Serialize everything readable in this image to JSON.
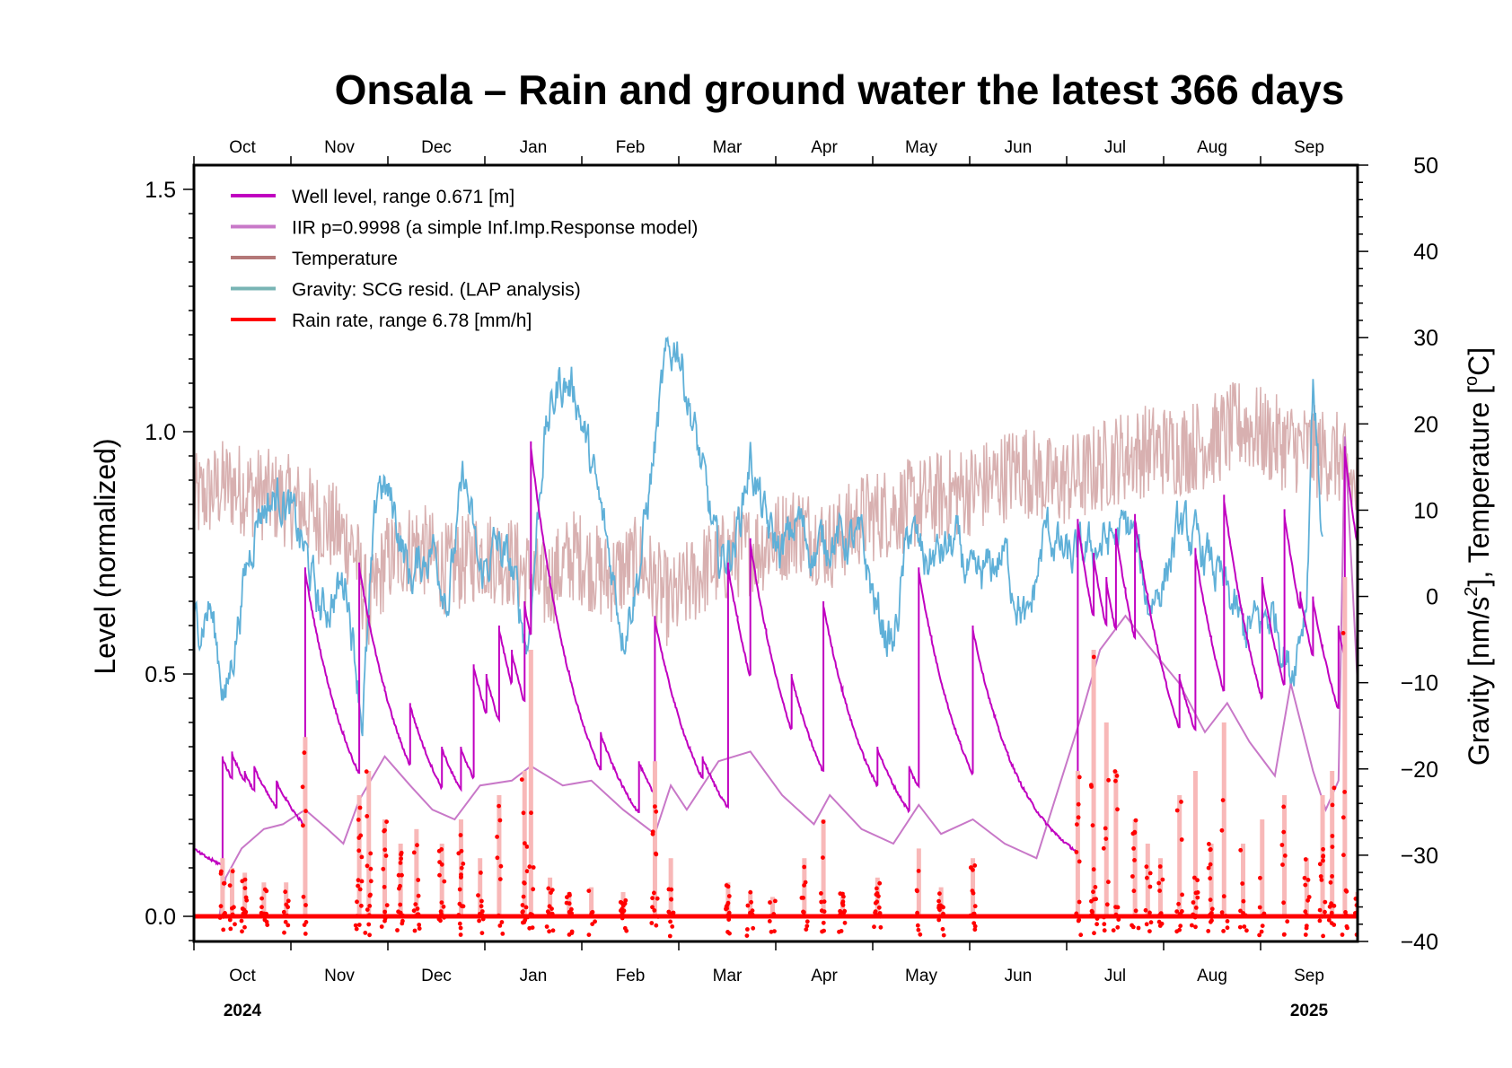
{
  "chart_data": {
    "type": "line",
    "title": "Onsala – Rain and ground water the latest 366 days",
    "ylabel_left": "Level (normalized)",
    "ylabel_right_prefix": "Gravity [nm/s",
    "ylabel_right_sup": "2",
    "ylabel_right_suffix": "], Temperature [",
    "ylabel_right_deg": "o",
    "ylabel_right_end": "C]",
    "ylim_left": [
      -0.05,
      1.55
    ],
    "ylim_right": [
      -40,
      50
    ],
    "yticks_left": [
      "0.0",
      "0.5",
      "1.0",
      "1.5"
    ],
    "yticks_left_values": [
      0,
      0.5,
      1.0,
      1.5
    ],
    "yticks_right": [
      "50",
      "40",
      "30",
      "20",
      "10",
      "0",
      "−10",
      "−20",
      "−30",
      "−40"
    ],
    "yticks_right_values": [
      50,
      40,
      30,
      20,
      10,
      0,
      -10,
      -20,
      -30,
      -40
    ],
    "x_days": 366,
    "months": [
      "Oct",
      "Nov",
      "Dec",
      "Jan",
      "Feb",
      "Mar",
      "Apr",
      "May",
      "Jun",
      "Jul",
      "Aug",
      "Sep"
    ],
    "years": [
      {
        "label": "2024",
        "month_index": 0
      },
      {
        "label": "2025",
        "month_index": 11
      }
    ],
    "grid": false,
    "legend_position": "top-left",
    "colors": {
      "well": "#c000c0",
      "iir": "#c878c8",
      "temperature": "#b47878",
      "temperature_trace": "#d8b0b0",
      "gravity": "#5fb0d8",
      "gravity_legend": "#78b4b4",
      "rain": "#ff0000",
      "rain_bar": "#f8b8b8"
    },
    "series": [
      {
        "name": "Well level, range 0.671 [m]",
        "key": "well",
        "axis": "left",
        "note": "recharge events (day, peak level) followed by decay",
        "events": [
          [
            0,
            0.14
          ],
          [
            9,
            0.33
          ],
          [
            12,
            0.34
          ],
          [
            16,
            0.3
          ],
          [
            19,
            0.31
          ],
          [
            22,
            0.27
          ],
          [
            26,
            0.28
          ],
          [
            29,
            0.22
          ],
          [
            35,
            0.72
          ],
          [
            47,
            0.3
          ],
          [
            52,
            0.73
          ],
          [
            55,
            0.55
          ],
          [
            60,
            0.4
          ],
          [
            68,
            0.44
          ],
          [
            78,
            0.35
          ],
          [
            82,
            0.27
          ],
          [
            84,
            0.35
          ],
          [
            88,
            0.52
          ],
          [
            92,
            0.5
          ],
          [
            96,
            0.6
          ],
          [
            100,
            0.55
          ],
          [
            104,
            0.65
          ],
          [
            106,
            0.98
          ],
          [
            112,
            0.63
          ],
          [
            118,
            0.42
          ],
          [
            128,
            0.38
          ],
          [
            140,
            0.32
          ],
          [
            145,
            0.62
          ],
          [
            156,
            0.3
          ],
          [
            160,
            0.33
          ],
          [
            168,
            0.73
          ],
          [
            171,
            0.38
          ],
          [
            175,
            0.78
          ],
          [
            180,
            0.5
          ],
          [
            188,
            0.5
          ],
          [
            198,
            0.65
          ],
          [
            204,
            0.36
          ],
          [
            215,
            0.35
          ],
          [
            225,
            0.31
          ],
          [
            228,
            0.72
          ],
          [
            232,
            0.3
          ],
          [
            241,
            0.24
          ],
          [
            245,
            0.6
          ],
          [
            252,
            0.32
          ],
          [
            256,
            0.25
          ],
          [
            262,
            0.23
          ],
          [
            278,
            0.82
          ],
          [
            283,
            0.75
          ],
          [
            287,
            0.7
          ],
          [
            290,
            0.8
          ],
          [
            293,
            0.66
          ],
          [
            296,
            0.83
          ],
          [
            300,
            0.62
          ],
          [
            310,
            0.5
          ],
          [
            315,
            0.76
          ],
          [
            320,
            0.5
          ],
          [
            324,
            0.87
          ],
          [
            330,
            0.6
          ],
          [
            336,
            0.7
          ],
          [
            343,
            0.84
          ],
          [
            348,
            0.67
          ],
          [
            352,
            0.66
          ],
          [
            355,
            0.43
          ],
          [
            360,
            0.6
          ],
          [
            362,
            0.97
          ],
          [
            366,
            0.03
          ]
        ]
      },
      {
        "name": "IIR p=0.9998 (a simple Inf.Imp.Response model)",
        "key": "iir",
        "axis": "left",
        "points": [
          [
            0,
            0.0
          ],
          [
            8,
            0.0
          ],
          [
            10,
            0.08
          ],
          [
            15,
            0.14
          ],
          [
            22,
            0.18
          ],
          [
            28,
            0.19
          ],
          [
            35,
            0.22
          ],
          [
            42,
            0.18
          ],
          [
            47,
            0.15
          ],
          [
            52,
            0.24
          ],
          [
            60,
            0.33
          ],
          [
            68,
            0.27
          ],
          [
            75,
            0.22
          ],
          [
            82,
            0.2
          ],
          [
            90,
            0.27
          ],
          [
            100,
            0.28
          ],
          [
            106,
            0.31
          ],
          [
            116,
            0.27
          ],
          [
            125,
            0.28
          ],
          [
            135,
            0.22
          ],
          [
            145,
            0.17
          ],
          [
            150,
            0.27
          ],
          [
            155,
            0.22
          ],
          [
            165,
            0.32
          ],
          [
            175,
            0.34
          ],
          [
            185,
            0.25
          ],
          [
            195,
            0.19
          ],
          [
            200,
            0.25
          ],
          [
            210,
            0.18
          ],
          [
            220,
            0.15
          ],
          [
            228,
            0.23
          ],
          [
            235,
            0.17
          ],
          [
            245,
            0.2
          ],
          [
            255,
            0.15
          ],
          [
            265,
            0.12
          ],
          [
            278,
            0.39
          ],
          [
            285,
            0.55
          ],
          [
            293,
            0.62
          ],
          [
            300,
            0.56
          ],
          [
            310,
            0.48
          ],
          [
            318,
            0.38
          ],
          [
            325,
            0.44
          ],
          [
            332,
            0.36
          ],
          [
            340,
            0.29
          ],
          [
            345,
            0.48
          ],
          [
            352,
            0.3
          ],
          [
            356,
            0.22
          ],
          [
            360,
            0.28
          ],
          [
            362,
            0.99
          ],
          [
            366,
            0.48
          ]
        ]
      },
      {
        "name": "Temperature",
        "key": "temperature",
        "axis": "right",
        "points": [
          [
            0,
            11
          ],
          [
            10,
            13
          ],
          [
            20,
            12
          ],
          [
            30,
            11
          ],
          [
            40,
            9
          ],
          [
            50,
            6
          ],
          [
            55,
            -2
          ],
          [
            60,
            4
          ],
          [
            70,
            6
          ],
          [
            80,
            3
          ],
          [
            90,
            5
          ],
          [
            100,
            4
          ],
          [
            110,
            1
          ],
          [
            120,
            5
          ],
          [
            130,
            2
          ],
          [
            140,
            4
          ],
          [
            150,
            -1
          ],
          [
            160,
            3
          ],
          [
            170,
            5
          ],
          [
            180,
            6
          ],
          [
            190,
            8
          ],
          [
            200,
            6
          ],
          [
            210,
            9
          ],
          [
            220,
            10
          ],
          [
            230,
            11
          ],
          [
            240,
            12
          ],
          [
            250,
            13
          ],
          [
            260,
            15
          ],
          [
            270,
            13
          ],
          [
            280,
            14
          ],
          [
            290,
            16
          ],
          [
            300,
            17
          ],
          [
            310,
            17
          ],
          [
            320,
            18
          ],
          [
            330,
            20
          ],
          [
            340,
            18
          ],
          [
            350,
            17
          ],
          [
            360,
            16
          ],
          [
            366,
            12
          ]
        ]
      },
      {
        "name": "Gravity: SCG resid. (LAP analysis)",
        "key": "gravity",
        "axis": "right",
        "points": [
          [
            0,
            -4
          ],
          [
            5,
            -1
          ],
          [
            10,
            -12
          ],
          [
            15,
            0
          ],
          [
            20,
            10
          ],
          [
            28,
            12
          ],
          [
            35,
            5
          ],
          [
            40,
            -2
          ],
          [
            48,
            2
          ],
          [
            53,
            -14
          ],
          [
            58,
            14
          ],
          [
            63,
            10
          ],
          [
            68,
            2
          ],
          [
            75,
            6
          ],
          [
            80,
            0
          ],
          [
            85,
            14
          ],
          [
            90,
            2
          ],
          [
            95,
            6
          ],
          [
            100,
            3
          ],
          [
            105,
            -6
          ],
          [
            110,
            18
          ],
          [
            115,
            25
          ],
          [
            120,
            24
          ],
          [
            125,
            15
          ],
          [
            130,
            6
          ],
          [
            135,
            -4
          ],
          [
            140,
            3
          ],
          [
            148,
            26
          ],
          [
            152,
            30
          ],
          [
            160,
            14
          ],
          [
            165,
            4
          ],
          [
            170,
            6
          ],
          [
            175,
            16
          ],
          [
            180,
            8
          ],
          [
            185,
            5
          ],
          [
            190,
            9
          ],
          [
            195,
            5
          ],
          [
            200,
            7
          ],
          [
            210,
            6
          ],
          [
            215,
            -2
          ],
          [
            220,
            -6
          ],
          [
            225,
            8
          ],
          [
            230,
            4
          ],
          [
            240,
            6
          ],
          [
            245,
            1
          ],
          [
            255,
            5
          ],
          [
            262,
            -4
          ],
          [
            268,
            8
          ],
          [
            275,
            4
          ],
          [
            285,
            6
          ],
          [
            295,
            8
          ],
          [
            300,
            -1
          ],
          [
            305,
            2
          ],
          [
            310,
            8
          ],
          [
            320,
            4
          ],
          [
            330,
            -4
          ],
          [
            340,
            -2
          ],
          [
            345,
            -9
          ],
          [
            350,
            0
          ],
          [
            352,
            26
          ],
          [
            355,
            6
          ]
        ]
      },
      {
        "name": "Rain rate, range 6.78 [mm/h]",
        "key": "rain",
        "axis": "left",
        "events": [
          [
            9,
            0.12
          ],
          [
            12,
            0.1
          ],
          [
            16,
            0.09
          ],
          [
            22,
            0.07
          ],
          [
            29,
            0.07
          ],
          [
            35,
            0.37
          ],
          [
            52,
            0.25
          ],
          [
            55,
            0.3
          ],
          [
            60,
            0.2
          ],
          [
            65,
            0.15
          ],
          [
            70,
            0.18
          ],
          [
            78,
            0.15
          ],
          [
            84,
            0.2
          ],
          [
            90,
            0.12
          ],
          [
            96,
            0.25
          ],
          [
            104,
            0.3
          ],
          [
            106,
            0.55
          ],
          [
            112,
            0.08
          ],
          [
            118,
            0.05
          ],
          [
            125,
            0.06
          ],
          [
            135,
            0.05
          ],
          [
            145,
            0.32
          ],
          [
            150,
            0.12
          ],
          [
            168,
            0.07
          ],
          [
            175,
            0.05
          ],
          [
            182,
            0.04
          ],
          [
            192,
            0.12
          ],
          [
            198,
            0.2
          ],
          [
            204,
            0.05
          ],
          [
            215,
            0.08
          ],
          [
            228,
            0.14
          ],
          [
            235,
            0.06
          ],
          [
            245,
            0.12
          ],
          [
            278,
            0.3
          ],
          [
            283,
            0.55
          ],
          [
            287,
            0.4
          ],
          [
            290,
            0.3
          ],
          [
            296,
            0.2
          ],
          [
            300,
            0.15
          ],
          [
            304,
            0.12
          ],
          [
            310,
            0.25
          ],
          [
            315,
            0.3
          ],
          [
            320,
            0.15
          ],
          [
            324,
            0.4
          ],
          [
            330,
            0.15
          ],
          [
            336,
            0.2
          ],
          [
            343,
            0.25
          ],
          [
            350,
            0.12
          ],
          [
            355,
            0.25
          ],
          [
            358,
            0.3
          ],
          [
            362,
            0.7
          ],
          [
            366,
            0.05
          ]
        ]
      }
    ]
  }
}
